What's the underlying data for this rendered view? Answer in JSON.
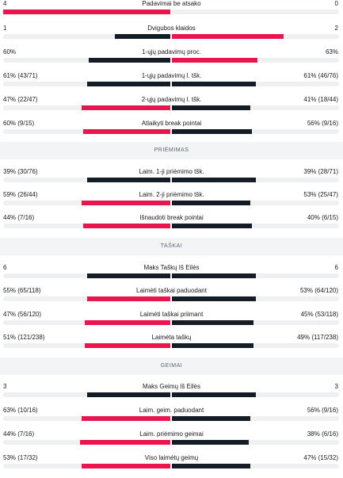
{
  "colors": {
    "winner": "#e8164c",
    "other": "#141c26",
    "track": "#eef0f2"
  },
  "sections": {
    "return": "PRIĖMIMAS",
    "points": "TAŠKAI",
    "games": "GEIMAI"
  },
  "stats": [
    {
      "label": "Padavimai be atsako",
      "left": "4",
      "right": "0",
      "lshare": 1,
      "rshare": 0,
      "lwin": true,
      "rwin": false
    },
    {
      "label": "Dvigubos klaidos",
      "left": "1",
      "right": "2",
      "lshare": 0.33,
      "rshare": 0.67,
      "lwin": false,
      "rwin": true
    },
    {
      "label": "1-ųjų padavimų proc.",
      "left": "60%",
      "right": "63%",
      "lshare": 0.49,
      "rshare": 0.51,
      "lwin": false,
      "rwin": true
    },
    {
      "label": "1-ųjų padavimų l. tšk.",
      "left": "61% (43/71)",
      "right": "61% (46/76)",
      "lshare": 0.5,
      "rshare": 0.5,
      "lwin": false,
      "rwin": false
    },
    {
      "label": "2-ųjų padavimų l. tšk.",
      "left": "47% (22/47)",
      "right": "41% (18/44)",
      "lshare": 0.53,
      "rshare": 0.47,
      "lwin": true,
      "rwin": false
    },
    {
      "label": "Atlaikyti break pointai",
      "left": "60% (9/15)",
      "right": "56% (9/16)",
      "lshare": 0.52,
      "rshare": 0.48,
      "lwin": true,
      "rwin": false
    },
    {
      "label": "Laim. 1-ji priėmimo tšk.",
      "left": "39% (30/76)",
      "right": "39% (28/71)",
      "lshare": 0.5,
      "rshare": 0.5,
      "lwin": false,
      "rwin": false
    },
    {
      "label": "Laim. 2-ji priėmimo tšk.",
      "left": "59% (26/44)",
      "right": "53% (25/47)",
      "lshare": 0.53,
      "rshare": 0.47,
      "lwin": true,
      "rwin": false
    },
    {
      "label": "Išnaudoti break pointai",
      "left": "44% (7/16)",
      "right": "40% (6/15)",
      "lshare": 0.52,
      "rshare": 0.48,
      "lwin": true,
      "rwin": false
    },
    {
      "label": "Maks Taškų Iš Eilės",
      "left": "6",
      "right": "6",
      "lshare": 0.5,
      "rshare": 0.5,
      "lwin": false,
      "rwin": false
    },
    {
      "label": "Laimėti taškai paduodant",
      "left": "55% (65/118)",
      "right": "53% (64/120)",
      "lshare": 0.5,
      "rshare": 0.5,
      "lwin": true,
      "rwin": false
    },
    {
      "label": "Laimėti taškai priimant",
      "left": "47% (56/120)",
      "right": "45% (53/118)",
      "lshare": 0.51,
      "rshare": 0.49,
      "lwin": true,
      "rwin": false
    },
    {
      "label": "Laimėta taškų",
      "left": "51% (121/238)",
      "right": "49% (117/238)",
      "lshare": 0.51,
      "rshare": 0.49,
      "lwin": true,
      "rwin": false
    },
    {
      "label": "Maks Geimų Iš Eilės",
      "left": "3",
      "right": "3",
      "lshare": 0.5,
      "rshare": 0.5,
      "lwin": false,
      "rwin": false
    },
    {
      "label": "Laim. geim. paduodant",
      "left": "63% (10/16)",
      "right": "56% (9/16)",
      "lshare": 0.53,
      "rshare": 0.47,
      "lwin": true,
      "rwin": false
    },
    {
      "label": "Laim. priėmimo geimai",
      "left": "44% (7/16)",
      "right": "38% (6/16)",
      "lshare": 0.54,
      "rshare": 0.46,
      "lwin": true,
      "rwin": false
    },
    {
      "label": "Viso laimėtų geimų",
      "left": "53% (17/32)",
      "right": "47% (15/32)",
      "lshare": 0.53,
      "rshare": 0.47,
      "lwin": true,
      "rwin": false
    }
  ]
}
